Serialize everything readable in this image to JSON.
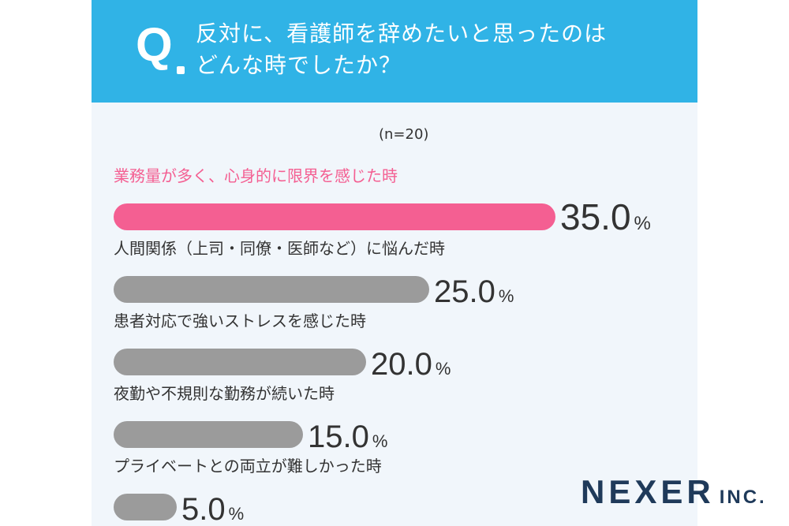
{
  "question": {
    "mark": "Q",
    "line1": "反対に、看護師を辞めたいと思ったのは",
    "line2": "どんな時でしたか？"
  },
  "sample_size": "(n=20)",
  "logo": {
    "main": "NEXER",
    "sub": "INC."
  },
  "colors": {
    "header": "#30b3e6",
    "highlight": "#f45f92",
    "bar": "#9b9b9b",
    "background": "#f1f6fb"
  },
  "chart_data": {
    "type": "bar",
    "orientation": "horizontal",
    "unit": "%",
    "categories": [
      "業務量が多く、心身的に限界を感じた時",
      "人間関係（上司・同僚・医師など）に悩んだ時",
      "患者対応で強いストレスを感じた時",
      "夜勤や不規則な勤務が続いた時",
      "プライベートとの両立が難しかった時"
    ],
    "values": [
      35.0,
      25.0,
      20.0,
      15.0,
      5.0
    ],
    "value_labels": [
      "35.0",
      "25.0",
      "20.0",
      "15.0",
      "5.0"
    ],
    "highlight_index": 0,
    "xlim": [
      0,
      35
    ]
  }
}
